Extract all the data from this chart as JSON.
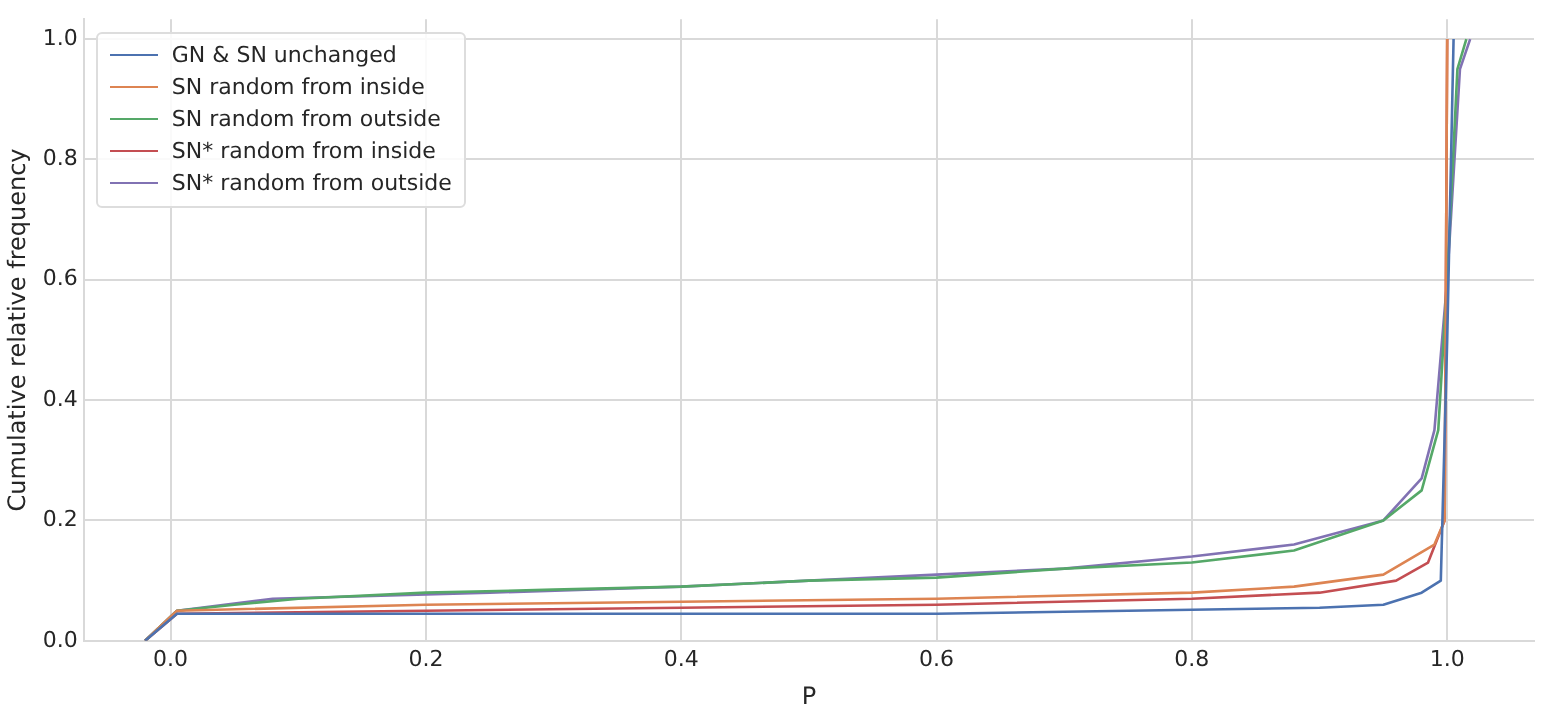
{
  "chart_data": {
    "type": "line",
    "xlabel": "P",
    "ylabel": "Cumulative relative frequency",
    "xlim": [
      -0.068,
      1.068
    ],
    "ylim": [
      0,
      1.033
    ],
    "xticks": [
      {
        "value": 0,
        "label": "0.0"
      },
      {
        "value": 0.2,
        "label": "0.2"
      },
      {
        "value": 0.4,
        "label": "0.4"
      },
      {
        "value": 0.6,
        "label": "0.6"
      },
      {
        "value": 0.8,
        "label": "0.8"
      },
      {
        "value": 1,
        "label": "1.0"
      }
    ],
    "yticks": [
      {
        "value": 0,
        "label": "0.0"
      },
      {
        "value": 0.2,
        "label": "0.2"
      },
      {
        "value": 0.4,
        "label": "0.4"
      },
      {
        "value": 0.6,
        "label": "0.6"
      },
      {
        "value": 0.8,
        "label": "0.8"
      },
      {
        "value": 1,
        "label": "1.0"
      }
    ],
    "grid": true,
    "legend": "top left",
    "marker": "none",
    "line_style": "solid",
    "series": [
      {
        "name": "GN & SN unchanged",
        "color": "#4c72b0",
        "x": [
          -0.02,
          0.005,
          0.1,
          0.4,
          0.6,
          0.75,
          0.9,
          0.95,
          0.98,
          0.995,
          1.0,
          1.005
        ],
        "values": [
          0,
          0.045,
          0.045,
          0.045,
          0.045,
          0.05,
          0.055,
          0.06,
          0.08,
          0.1,
          0.5,
          1.0
        ]
      },
      {
        "name": "SN random from inside",
        "color": "#dd8452",
        "x": [
          -0.02,
          0.005,
          0.2,
          0.4,
          0.6,
          0.8,
          0.88,
          0.95,
          0.99,
          0.998,
          1.0
        ],
        "values": [
          0,
          0.05,
          0.06,
          0.065,
          0.07,
          0.08,
          0.09,
          0.11,
          0.16,
          0.2,
          1.0
        ]
      },
      {
        "name": "SN random from outside",
        "color": "#55a868",
        "x": [
          -0.02,
          0.005,
          0.05,
          0.1,
          0.2,
          0.3,
          0.4,
          0.5,
          0.6,
          0.7,
          0.8,
          0.88,
          0.95,
          0.98,
          0.993,
          1.0,
          1.008,
          1.015
        ],
        "values": [
          0,
          0.05,
          0.06,
          0.07,
          0.08,
          0.085,
          0.09,
          0.1,
          0.105,
          0.12,
          0.13,
          0.15,
          0.2,
          0.25,
          0.35,
          0.6,
          0.95,
          1.0
        ]
      },
      {
        "name": "SN* random from inside",
        "color": "#c44e52",
        "x": [
          -0.02,
          0.005,
          0.2,
          0.4,
          0.6,
          0.8,
          0.9,
          0.96,
          0.985,
          0.998,
          1.0
        ],
        "values": [
          0,
          0.045,
          0.05,
          0.055,
          0.06,
          0.07,
          0.08,
          0.1,
          0.13,
          0.2,
          1.0
        ]
      },
      {
        "name": "SN* random from outside",
        "color": "#8172b3",
        "x": [
          -0.02,
          0.005,
          0.08,
          0.25,
          0.4,
          0.5,
          0.6,
          0.7,
          0.8,
          0.88,
          0.95,
          0.98,
          0.99,
          1.0,
          1.01,
          1.018
        ],
        "values": [
          0,
          0.05,
          0.07,
          0.08,
          0.09,
          0.1,
          0.11,
          0.12,
          0.14,
          0.16,
          0.2,
          0.27,
          0.35,
          0.6,
          0.95,
          1.0
        ]
      }
    ]
  }
}
